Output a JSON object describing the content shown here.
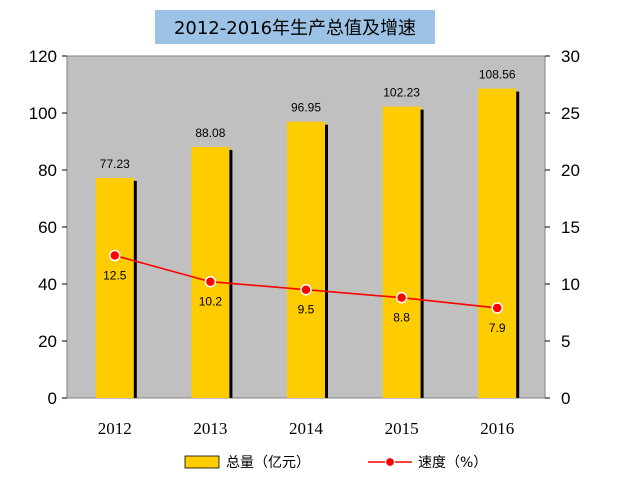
{
  "chart_data": {
    "type": "bar",
    "title": "2012-2016年生产总值及增速",
    "categories": [
      "2012",
      "2013",
      "2014",
      "2015",
      "2016"
    ],
    "series": [
      {
        "name": "总量（亿元）",
        "type": "bar",
        "axis": "left",
        "values": [
          77.23,
          88.08,
          96.95,
          102.23,
          108.56
        ],
        "labels": [
          "77.23",
          "88.08",
          "96.95",
          "102.23",
          "108.56"
        ]
      },
      {
        "name": "速度（%）",
        "type": "line",
        "axis": "right",
        "values": [
          12.5,
          10.2,
          9.5,
          8.8,
          7.9
        ],
        "labels": [
          "12.5",
          "10.2",
          "9.5",
          "8.8",
          "7.9"
        ]
      }
    ],
    "ylim_left": [
      0,
      120
    ],
    "ylim_right": [
      0,
      30
    ],
    "yticks_left": [
      "0",
      "20",
      "40",
      "60",
      "80",
      "100",
      "120"
    ],
    "yticks_right": [
      "0",
      "5",
      "10",
      "15",
      "20",
      "25",
      "30"
    ],
    "grid": false,
    "legend_position": "bottom",
    "colors": {
      "bar": "#ffcc00",
      "line": "#ff0000",
      "plot_bg": "#c0c0c0",
      "title_bg": "#9cc3e6"
    }
  }
}
